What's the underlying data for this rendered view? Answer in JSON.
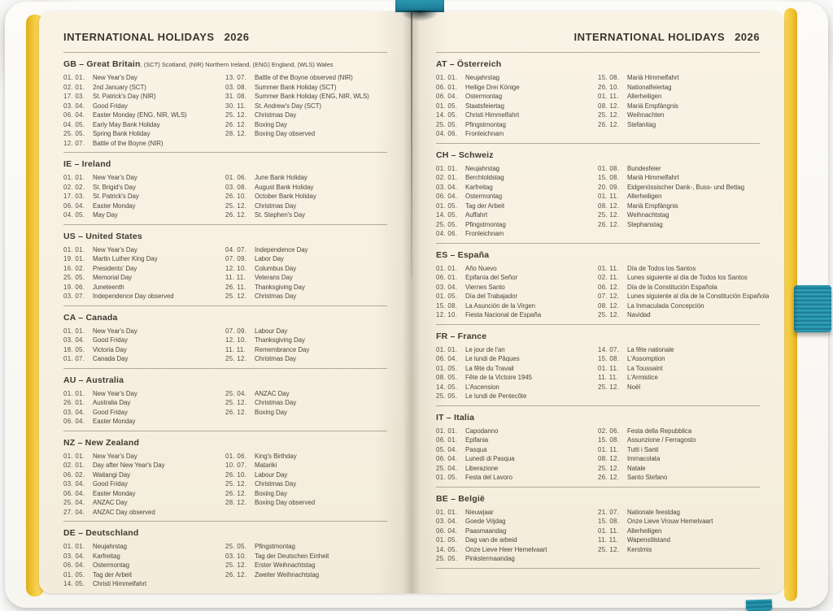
{
  "colors": {
    "accent_teal": "#1f8aa8",
    "edge_yellow": "#eec133",
    "paper": "#f7f0e1",
    "ink": "#4a453c"
  },
  "decorations": {
    "bookmark_top": "teal-ribbon",
    "elastic_band": "teal-elastic-closure",
    "bookmark_bottom": "teal-ribbon-tip",
    "page_edges": "yellow-painted-edges"
  },
  "header": {
    "title": "INTERNATIONAL HOLIDAYS",
    "year": "2026"
  },
  "left_page": {
    "sections": [
      {
        "code": "GB – Great Britain",
        "note": ", (SCT) Scotland, (NIR) Northern Ireland, (ENG) England, (WLS) Wales",
        "col1": [
          {
            "date": "01. 01.",
            "name": "New Year's Day"
          },
          {
            "date": "02. 01.",
            "name": "2nd January (SCT)"
          },
          {
            "date": "17. 03.",
            "name": "St. Patrick's Day (NIR)"
          },
          {
            "date": "03. 04.",
            "name": "Good Friday"
          },
          {
            "date": "06. 04.",
            "name": "Easter Monday (ENG, NIR, WLS)"
          },
          {
            "date": "04. 05.",
            "name": "Early May Bank Holiday"
          },
          {
            "date": "25. 05.",
            "name": "Spring Bank Holiday"
          },
          {
            "date": "12. 07.",
            "name": "Battle of the Boyne (NIR)"
          }
        ],
        "col2": [
          {
            "date": "13. 07.",
            "name": "Battle of the Boyne observed (NIR)"
          },
          {
            "date": "03. 08.",
            "name": "Summer Bank Holiday (SCT)"
          },
          {
            "date": "31. 08.",
            "name": "Summer Bank Holiday (ENG, NIR, WLS)"
          },
          {
            "date": "30. 11.",
            "name": "St. Andrew's Day (SCT)"
          },
          {
            "date": "25. 12.",
            "name": "Christmas Day"
          },
          {
            "date": "26. 12.",
            "name": "Boxing Day"
          },
          {
            "date": "28. 12.",
            "name": "Boxing Day observed"
          }
        ]
      },
      {
        "code": "IE – Ireland",
        "col1": [
          {
            "date": "01. 01.",
            "name": "New Year's Day"
          },
          {
            "date": "02. 02.",
            "name": "St. Brigid's Day"
          },
          {
            "date": "17. 03.",
            "name": "St. Patrick's Day"
          },
          {
            "date": "06. 04.",
            "name": "Easter Monday"
          },
          {
            "date": "04. 05.",
            "name": "May Day"
          }
        ],
        "col2": [
          {
            "date": "01. 06.",
            "name": "June Bank Holiday"
          },
          {
            "date": "03. 08.",
            "name": "August Bank Holiday"
          },
          {
            "date": "26. 10.",
            "name": "October Bank Holiday"
          },
          {
            "date": "25. 12.",
            "name": "Christmas Day"
          },
          {
            "date": "26. 12.",
            "name": "St. Stephen's Day"
          }
        ]
      },
      {
        "code": "US – United States",
        "col1": [
          {
            "date": "01. 01.",
            "name": "New Year's Day"
          },
          {
            "date": "19. 01.",
            "name": "Martin Luther King Day"
          },
          {
            "date": "16. 02.",
            "name": "Presidents' Day"
          },
          {
            "date": "25. 05.",
            "name": "Memorial Day"
          },
          {
            "date": "19. 06.",
            "name": "Juneteenth"
          },
          {
            "date": "03. 07.",
            "name": "Independence Day observed"
          }
        ],
        "col2": [
          {
            "date": "04. 07.",
            "name": "Independence Day"
          },
          {
            "date": "07. 09.",
            "name": "Labor Day"
          },
          {
            "date": "12. 10.",
            "name": "Columbus Day"
          },
          {
            "date": "11. 11.",
            "name": "Veterans Day"
          },
          {
            "date": "26. 11.",
            "name": "Thanksgiving Day"
          },
          {
            "date": "25. 12.",
            "name": "Christmas Day"
          }
        ]
      },
      {
        "code": "CA – Canada",
        "col1": [
          {
            "date": "01. 01.",
            "name": "New Year's Day"
          },
          {
            "date": "03. 04.",
            "name": "Good Friday"
          },
          {
            "date": "18. 05.",
            "name": "Victoria Day"
          },
          {
            "date": "01. 07.",
            "name": "Canada Day"
          }
        ],
        "col2": [
          {
            "date": "07. 09.",
            "name": "Labour Day"
          },
          {
            "date": "12. 10.",
            "name": "Thanksgiving Day"
          },
          {
            "date": "11. 11.",
            "name": "Remembrance Day"
          },
          {
            "date": "25. 12.",
            "name": "Christmas Day"
          }
        ]
      },
      {
        "code": "AU – Australia",
        "col1": [
          {
            "date": "01. 01.",
            "name": "New Year's Day"
          },
          {
            "date": "26. 01.",
            "name": "Australia Day"
          },
          {
            "date": "03. 04.",
            "name": "Good Friday"
          },
          {
            "date": "06. 04.",
            "name": "Easter Monday"
          }
        ],
        "col2": [
          {
            "date": "25. 04.",
            "name": "ANZAC Day"
          },
          {
            "date": "25. 12.",
            "name": "Christmas Day"
          },
          {
            "date": "26. 12.",
            "name": "Boxing Day"
          }
        ]
      },
      {
        "code": "NZ – New Zealand",
        "col1": [
          {
            "date": "01. 01.",
            "name": "New Year's Day"
          },
          {
            "date": "02. 01.",
            "name": "Day after New Year's Day"
          },
          {
            "date": "06. 02.",
            "name": "Waitangi Day"
          },
          {
            "date": "03. 04.",
            "name": "Good Friday"
          },
          {
            "date": "06. 04.",
            "name": "Easter Monday"
          },
          {
            "date": "25. 04.",
            "name": "ANZAC Day"
          },
          {
            "date": "27. 04.",
            "name": "ANZAC Day observed"
          }
        ],
        "col2": [
          {
            "date": "01. 06.",
            "name": "King's Birthday"
          },
          {
            "date": "10. 07.",
            "name": "Matariki"
          },
          {
            "date": "26. 10.",
            "name": "Labour Day"
          },
          {
            "date": "25. 12.",
            "name": "Christmas Day"
          },
          {
            "date": "26. 12.",
            "name": "Boxing Day"
          },
          {
            "date": "28. 12.",
            "name": "Boxing Day observed"
          }
        ]
      },
      {
        "code": "DE – Deutschland",
        "col1": [
          {
            "date": "01. 01.",
            "name": "Neujahrstag"
          },
          {
            "date": "03. 04.",
            "name": "Karfreitag"
          },
          {
            "date": "06. 04.",
            "name": "Ostermontag"
          },
          {
            "date": "01. 05.",
            "name": "Tag der Arbeit"
          },
          {
            "date": "14. 05.",
            "name": "Christi Himmelfahrt"
          }
        ],
        "col2": [
          {
            "date": "25. 05.",
            "name": "Pfingstmontag"
          },
          {
            "date": "03. 10.",
            "name": "Tag der Deutschen Einheit"
          },
          {
            "date": "25. 12.",
            "name": "Erster Weihnachtstag"
          },
          {
            "date": "26. 12.",
            "name": "Zweiter Weihnachtstag"
          }
        ]
      }
    ]
  },
  "right_page": {
    "sections": [
      {
        "code": "AT – Österreich",
        "col1": [
          {
            "date": "01. 01.",
            "name": "Neujahrstag"
          },
          {
            "date": "06. 01.",
            "name": "Heilige Drei Könige"
          },
          {
            "date": "06. 04.",
            "name": "Ostermontag"
          },
          {
            "date": "01. 05.",
            "name": "Staatsfeiertag"
          },
          {
            "date": "14. 05.",
            "name": "Christi Himmelfahrt"
          },
          {
            "date": "25. 05.",
            "name": "Pfingstmontag"
          },
          {
            "date": "04. 06.",
            "name": "Fronleichnam"
          }
        ],
        "col2": [
          {
            "date": "15. 08.",
            "name": "Mariä Himmelfahrt"
          },
          {
            "date": "26. 10.",
            "name": "Nationalfeiertag"
          },
          {
            "date": "01. 11.",
            "name": "Allerheiligen"
          },
          {
            "date": "08. 12.",
            "name": "Mariä Empfängnis"
          },
          {
            "date": "25. 12.",
            "name": "Weihnachten"
          },
          {
            "date": "26. 12.",
            "name": "Stefanitag"
          }
        ]
      },
      {
        "code": "CH – Schweiz",
        "col1": [
          {
            "date": "01. 01.",
            "name": "Neujahrstag"
          },
          {
            "date": "02. 01.",
            "name": "Berchtoldstag"
          },
          {
            "date": "03. 04.",
            "name": "Karfreitag"
          },
          {
            "date": "06. 04.",
            "name": "Ostermontag"
          },
          {
            "date": "01. 05.",
            "name": "Tag der Arbeit"
          },
          {
            "date": "14. 05.",
            "name": "Auffahrt"
          },
          {
            "date": "25. 05.",
            "name": "Pfingstmontag"
          },
          {
            "date": "04. 06.",
            "name": "Fronleichnam"
          }
        ],
        "col2": [
          {
            "date": "01. 08.",
            "name": "Bundesfeier"
          },
          {
            "date": "15. 08.",
            "name": "Mariä Himmelfahrt"
          },
          {
            "date": "20. 09.",
            "name": "Eidgenössischer Dank-, Buss- und Bettag"
          },
          {
            "date": "01. 11.",
            "name": "Allerheiligen"
          },
          {
            "date": "08. 12.",
            "name": "Mariä Empfängnis"
          },
          {
            "date": "25. 12.",
            "name": "Weihnachtstag"
          },
          {
            "date": "26. 12.",
            "name": "Stephanstag"
          }
        ]
      },
      {
        "code": "ES – España",
        "col1": [
          {
            "date": "01. 01.",
            "name": "Año Nuevo"
          },
          {
            "date": "06. 01.",
            "name": "Epifanía del Señor"
          },
          {
            "date": "03. 04.",
            "name": "Viernes Santo"
          },
          {
            "date": "01. 05.",
            "name": "Día del Trabajador"
          },
          {
            "date": "15. 08.",
            "name": "La Asunción de la Virgen"
          },
          {
            "date": "12. 10.",
            "name": "Fiesta Nacional de España"
          }
        ],
        "col2": [
          {
            "date": "01. 11.",
            "name": "Día de Todos los Santos"
          },
          {
            "date": "02. 11.",
            "name": "Lunes siguiente al día de Todos los Santos"
          },
          {
            "date": "06. 12.",
            "name": "Día de la Constitución Española"
          },
          {
            "date": "07. 12.",
            "name": "Lunes siguiente al día de la Constitución Española"
          },
          {
            "date": "08. 12.",
            "name": "La Inmaculada Concepción"
          },
          {
            "date": "25. 12.",
            "name": "Navidad"
          }
        ]
      },
      {
        "code": "FR – France",
        "col1": [
          {
            "date": "01. 01.",
            "name": "Le jour de l'an"
          },
          {
            "date": "06. 04.",
            "name": "Le lundi de Pâques"
          },
          {
            "date": "01. 05.",
            "name": "La fête du Travail"
          },
          {
            "date": "08. 05.",
            "name": "Fête de la Victoire 1945"
          },
          {
            "date": "14. 05.",
            "name": "L'Ascension"
          },
          {
            "date": "25. 05.",
            "name": "Le lundi de Pentecôte"
          }
        ],
        "col2": [
          {
            "date": "14. 07.",
            "name": "La fête nationale"
          },
          {
            "date": "15. 08.",
            "name": "L'Assomption"
          },
          {
            "date": "01. 11.",
            "name": "La Toussaint"
          },
          {
            "date": "11. 11.",
            "name": "L'Armistice"
          },
          {
            "date": "25. 12.",
            "name": "Noël"
          }
        ]
      },
      {
        "code": "IT – Italia",
        "col1": [
          {
            "date": "01. 01.",
            "name": "Capodanno"
          },
          {
            "date": "06. 01.",
            "name": "Epifania"
          },
          {
            "date": "05. 04.",
            "name": "Pasqua"
          },
          {
            "date": "06. 04.",
            "name": "Lunedì di Pasqua"
          },
          {
            "date": "25. 04.",
            "name": "Liberazione"
          },
          {
            "date": "01. 05.",
            "name": "Festa del Lavoro"
          }
        ],
        "col2": [
          {
            "date": "02. 06.",
            "name": "Festa della Repubblica"
          },
          {
            "date": "15. 08.",
            "name": "Assunzione / Ferragosto"
          },
          {
            "date": "01. 11.",
            "name": "Tutti i Santi"
          },
          {
            "date": "08. 12.",
            "name": "Immacolata"
          },
          {
            "date": "25. 12.",
            "name": "Natale"
          },
          {
            "date": "26. 12.",
            "name": "Santo Stefano"
          }
        ]
      },
      {
        "code": "BE – België",
        "col1": [
          {
            "date": "01. 01.",
            "name": "Nieuwjaar"
          },
          {
            "date": "03. 04.",
            "name": "Goede Vrijdag"
          },
          {
            "date": "06. 04.",
            "name": "Paasmaandag"
          },
          {
            "date": "01. 05.",
            "name": "Dag van de arbeid"
          },
          {
            "date": "14. 05.",
            "name": "Onze Lieve Heer Hemelvaart"
          },
          {
            "date": "25. 05.",
            "name": "Pinkstermaandag"
          }
        ],
        "col2": [
          {
            "date": "21. 07.",
            "name": "Nationale feestdag"
          },
          {
            "date": "15. 08.",
            "name": "Onze Lieve Vrouw Hemelvaart"
          },
          {
            "date": "01. 11.",
            "name": "Allerheiligen"
          },
          {
            "date": "11. 11.",
            "name": "Wapenstilstand"
          },
          {
            "date": "25. 12.",
            "name": "Kerstmis"
          }
        ]
      }
    ]
  }
}
